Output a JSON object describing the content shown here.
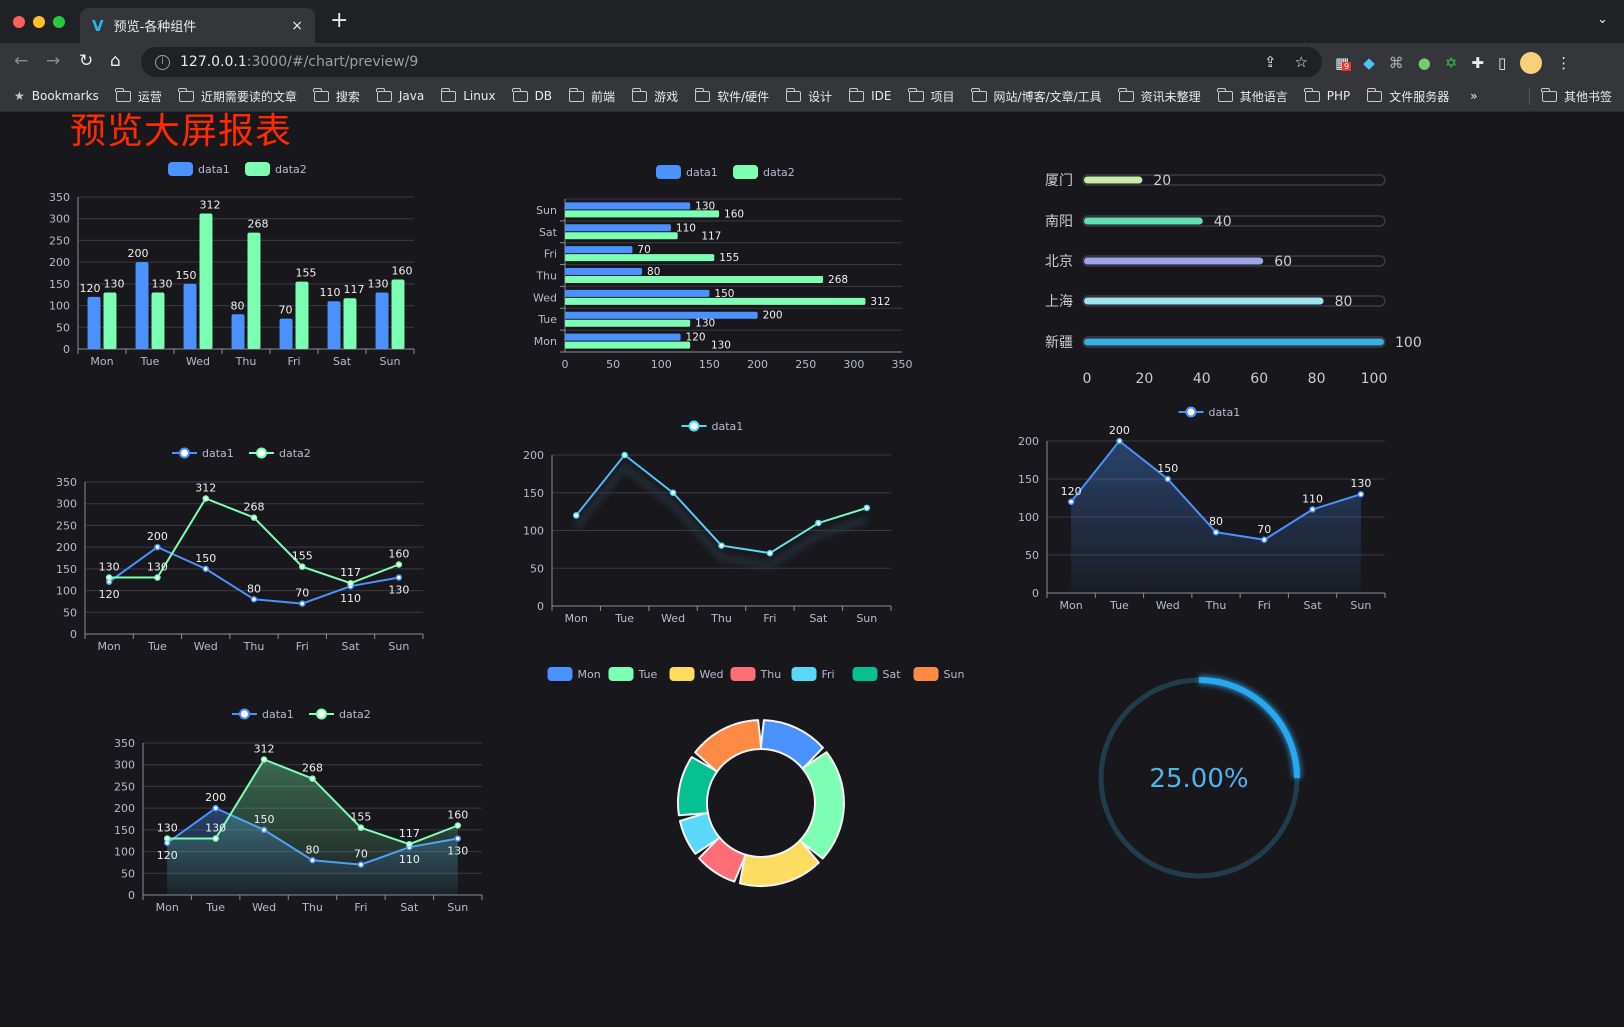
{
  "browser": {
    "tab_title": "预览-各种组件",
    "tab_close": "×",
    "new_tab": "+",
    "url_host": "127.0.0.1",
    "url_rest": ":3000/#/chart/preview/9",
    "extension_badge": "9",
    "bookmarks": [
      "Bookmarks",
      "运营",
      "近期需要读的文章",
      "搜索",
      "Java",
      "Linux",
      "DB",
      "前端",
      "游戏",
      "软件/硬件",
      "设计",
      "IDE",
      "项目",
      "网站/博客/文章/工具",
      "资讯未整理",
      "其他语言",
      "PHP",
      "文件服务器"
    ],
    "bookmarks_overflow": "»",
    "other_bookmarks": "其他书签"
  },
  "page": {
    "title": "预览大屏报表",
    "title_color": "#ff2a00",
    "background": "#18181c"
  },
  "chart_data": [
    {
      "type": "bar",
      "orientation": "vertical",
      "categories": [
        "Mon",
        "Tue",
        "Wed",
        "Thu",
        "Fri",
        "Sat",
        "Sun"
      ],
      "series": [
        {
          "name": "data1",
          "values": [
            120,
            200,
            150,
            80,
            70,
            110,
            130
          ],
          "color": "#4992ff"
        },
        {
          "name": "data2",
          "values": [
            130,
            130,
            312,
            268,
            155,
            117,
            160
          ],
          "color": "#7cffb2"
        }
      ],
      "ylim": [
        0,
        350
      ],
      "yticks": [
        "0",
        "50",
        "100",
        "150",
        "200",
        "250",
        "300",
        "350"
      ],
      "grid": true,
      "legend": "top",
      "data_labels": true
    },
    {
      "type": "bar",
      "orientation": "horizontal",
      "categories": [
        "Mon",
        "Tue",
        "Wed",
        "Thu",
        "Fri",
        "Sat",
        "Sun"
      ],
      "series": [
        {
          "name": "data1",
          "values": [
            120,
            200,
            150,
            80,
            70,
            110,
            130
          ],
          "color": "#4992ff"
        },
        {
          "name": "data2",
          "values": [
            130,
            130,
            312,
            268,
            155,
            117,
            160
          ],
          "color": "#7cffb2"
        }
      ],
      "xlim": [
        0,
        350
      ],
      "xticks": [
        "0",
        "50",
        "100",
        "150",
        "200",
        "250",
        "300",
        "350"
      ],
      "grid": true,
      "legend": "top",
      "data_labels": true
    },
    {
      "type": "bar",
      "orientation": "progress",
      "categories": [
        "厦门",
        "南阳",
        "北京",
        "上海",
        "新疆"
      ],
      "values": [
        20,
        40,
        60,
        80,
        100
      ],
      "colors": [
        "#c6eea6",
        "#5ee0b0",
        "#9da6e8",
        "#9ee6ee",
        "#3aaee4"
      ],
      "xlim": [
        0,
        100
      ],
      "xticks": [
        "0",
        "20",
        "40",
        "60",
        "80",
        "100"
      ]
    },
    {
      "type": "line",
      "categories": [
        "Mon",
        "Tue",
        "Wed",
        "Thu",
        "Fri",
        "Sat",
        "Sun"
      ],
      "series": [
        {
          "name": "data1",
          "values": [
            120,
            200,
            150,
            80,
            70,
            110,
            130
          ],
          "color": "#4992ff"
        },
        {
          "name": "data2",
          "values": [
            130,
            130,
            312,
            268,
            155,
            117,
            160
          ],
          "color": "#7cffb2"
        }
      ],
      "ylim": [
        0,
        350
      ],
      "yticks": [
        "0",
        "50",
        "100",
        "150",
        "200",
        "250",
        "300",
        "350"
      ],
      "grid": true,
      "legend": "top",
      "data_labels": true,
      "area": false
    },
    {
      "type": "line",
      "categories": [
        "Mon",
        "Tue",
        "Wed",
        "Thu",
        "Fri",
        "Sat",
        "Sun"
      ],
      "series": [
        {
          "name": "data1",
          "values": [
            120,
            200,
            150,
            80,
            70,
            110,
            130
          ],
          "color": "#58d9f9",
          "gradient_to": "#7cffb2"
        }
      ],
      "ylim": [
        0,
        200
      ],
      "yticks": [
        "0",
        "50",
        "100",
        "150",
        "200"
      ],
      "grid": true,
      "legend": "top",
      "data_labels": false,
      "area": false
    },
    {
      "type": "area",
      "categories": [
        "Mon",
        "Tue",
        "Wed",
        "Thu",
        "Fri",
        "Sat",
        "Sun"
      ],
      "series": [
        {
          "name": "data1",
          "values": [
            120,
            200,
            150,
            80,
            70,
            110,
            130
          ],
          "color": "#4992ff"
        }
      ],
      "ylim": [
        0,
        200
      ],
      "yticks": [
        "0",
        "50",
        "100",
        "150",
        "200"
      ],
      "grid": true,
      "legend": "top",
      "data_labels": true,
      "area": true
    },
    {
      "type": "area",
      "categories": [
        "Mon",
        "Tue",
        "Wed",
        "Thu",
        "Fri",
        "Sat",
        "Sun"
      ],
      "series": [
        {
          "name": "data1",
          "values": [
            120,
            200,
            150,
            80,
            70,
            110,
            130
          ],
          "color": "#4992ff"
        },
        {
          "name": "data2",
          "values": [
            130,
            130,
            312,
            268,
            155,
            117,
            160
          ],
          "color": "#7cffb2"
        }
      ],
      "ylim": [
        0,
        350
      ],
      "yticks": [
        "0",
        "50",
        "100",
        "150",
        "200",
        "250",
        "300",
        "350"
      ],
      "grid": true,
      "legend": "top",
      "data_labels": true,
      "area": true
    },
    {
      "type": "pie",
      "donut": true,
      "categories": [
        "Mon",
        "Tue",
        "Wed",
        "Thu",
        "Fri",
        "Sat",
        "Sun"
      ],
      "values": [
        120,
        200,
        150,
        80,
        70,
        110,
        130
      ],
      "colors": [
        "#4992ff",
        "#7cffb2",
        "#fddd60",
        "#ff6e76",
        "#58d9f9",
        "#05c091",
        "#ff8a45"
      ],
      "legend": "top"
    },
    {
      "type": "gauge",
      "value": 25,
      "max": 100,
      "label": "25.00%",
      "color": "#29a8f0",
      "track_color": "#213d4c"
    }
  ]
}
